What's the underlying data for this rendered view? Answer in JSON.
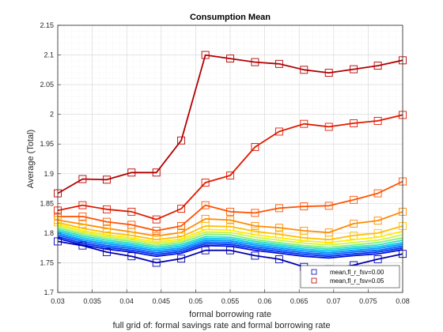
{
  "chart_data": {
    "type": "line",
    "title": "Consumption Mean",
    "xlabel": "formal borrowing rate",
    "ylabel": "Average (Total)",
    "caption": "full grid of: formal savings rate and formal borrowing rate",
    "xlim": [
      0.03,
      0.08
    ],
    "ylim": [
      1.7,
      2.15
    ],
    "xticks": [
      "0.03",
      "0.035",
      "0.04",
      "0.045",
      "0.05",
      "0.055",
      "0.06",
      "0.065",
      "0.07",
      "0.075",
      "0.08"
    ],
    "yticks": [
      "1.7",
      "1.75",
      "1.8",
      "1.85",
      "1.9",
      "1.95",
      "2",
      "2.05",
      "2.1",
      "2.15"
    ],
    "grid": true,
    "legend_position": "bottom-right",
    "x": [
      0.03,
      0.0336,
      0.0371,
      0.0407,
      0.0443,
      0.0479,
      0.0514,
      0.055,
      0.0586,
      0.0621,
      0.0657,
      0.0693,
      0.0729,
      0.0764,
      0.08
    ],
    "series": [
      {
        "name": "mean,fl_r_fsv=0.05",
        "color": "#b30000",
        "marker": "square",
        "values": [
          1.867,
          1.891,
          1.89,
          1.902,
          1.902,
          1.956,
          2.1,
          2.094,
          2.088,
          2.085,
          2.075,
          2.07,
          2.076,
          2.082,
          2.091
        ]
      },
      {
        "color": "#e01a00",
        "marker": "square",
        "values": [
          1.838,
          1.847,
          1.84,
          1.836,
          1.823,
          1.841,
          1.885,
          1.897,
          1.945,
          1.971,
          1.984,
          1.979,
          1.985,
          1.989,
          1.999
        ]
      },
      {
        "color": "#ff5200",
        "marker": "square",
        "values": [
          1.828,
          1.828,
          1.819,
          1.814,
          1.804,
          1.812,
          1.847,
          1.836,
          1.834,
          1.842,
          1.845,
          1.846,
          1.856,
          1.867,
          1.887
        ]
      },
      {
        "color": "#ff8c00",
        "marker": "square",
        "values": [
          1.822,
          1.815,
          1.808,
          1.802,
          1.795,
          1.801,
          1.824,
          1.822,
          1.812,
          1.809,
          1.804,
          1.801,
          1.816,
          1.821,
          1.836
        ]
      },
      {
        "color": "#ffbf00",
        "marker": "square",
        "values": [
          1.818,
          1.808,
          1.801,
          1.796,
          1.789,
          1.794,
          1.812,
          1.811,
          1.803,
          1.798,
          1.792,
          1.789,
          1.796,
          1.8,
          1.812
        ]
      },
      {
        "color": "#ffec00",
        "values": [
          1.815,
          1.804,
          1.797,
          1.792,
          1.785,
          1.79,
          1.806,
          1.805,
          1.797,
          1.792,
          1.787,
          1.784,
          1.789,
          1.793,
          1.803
        ]
      },
      {
        "color": "#cdf542",
        "values": [
          1.812,
          1.801,
          1.794,
          1.789,
          1.782,
          1.787,
          1.802,
          1.801,
          1.793,
          1.788,
          1.783,
          1.78,
          1.784,
          1.788,
          1.797
        ]
      },
      {
        "color": "#7ff07f",
        "values": [
          1.809,
          1.798,
          1.791,
          1.786,
          1.779,
          1.784,
          1.798,
          1.797,
          1.789,
          1.784,
          1.779,
          1.776,
          1.78,
          1.784,
          1.792
        ]
      },
      {
        "color": "#33e0c0",
        "values": [
          1.806,
          1.795,
          1.788,
          1.783,
          1.776,
          1.781,
          1.794,
          1.793,
          1.786,
          1.781,
          1.776,
          1.773,
          1.777,
          1.78,
          1.788
        ]
      },
      {
        "color": "#00c8f0",
        "values": [
          1.803,
          1.792,
          1.785,
          1.78,
          1.773,
          1.778,
          1.791,
          1.79,
          1.783,
          1.778,
          1.773,
          1.77,
          1.774,
          1.777,
          1.784
        ]
      },
      {
        "color": "#0095ff",
        "values": [
          1.8,
          1.789,
          1.782,
          1.777,
          1.77,
          1.775,
          1.788,
          1.787,
          1.78,
          1.775,
          1.77,
          1.767,
          1.771,
          1.774,
          1.781
        ]
      },
      {
        "color": "#0060ff",
        "values": [
          1.797,
          1.786,
          1.779,
          1.774,
          1.767,
          1.772,
          1.785,
          1.784,
          1.777,
          1.772,
          1.767,
          1.764,
          1.768,
          1.771,
          1.778
        ]
      },
      {
        "color": "#0030f0",
        "values": [
          1.794,
          1.783,
          1.776,
          1.771,
          1.764,
          1.769,
          1.782,
          1.781,
          1.774,
          1.769,
          1.764,
          1.761,
          1.765,
          1.768,
          1.775
        ]
      },
      {
        "color": "#0010d8",
        "values": [
          1.791,
          1.78,
          1.773,
          1.768,
          1.761,
          1.766,
          1.779,
          1.778,
          1.771,
          1.766,
          1.761,
          1.758,
          1.762,
          1.765,
          1.772
        ]
      },
      {
        "name": "mean,fl_r_fsv=0.00",
        "color": "#0000b0",
        "marker": "square",
        "values": [
          1.786,
          1.779,
          1.768,
          1.761,
          1.75,
          1.757,
          1.771,
          1.771,
          1.762,
          1.756,
          1.743,
          1.739,
          1.746,
          1.756,
          1.765
        ]
      }
    ]
  }
}
